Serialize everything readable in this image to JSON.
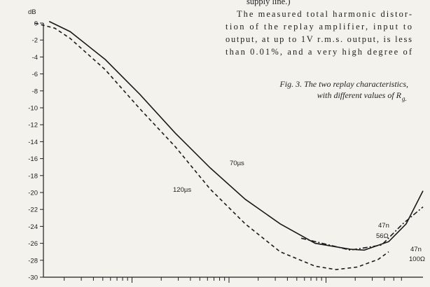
{
  "chart_data": {
    "type": "line",
    "text_lines": [
      "supply line.)",
      "The measured total harmonic distor-",
      "tion of the replay amplifier, input to",
      "output, at up to 1V r.m.s. output, is less",
      "than 0.01%, and a very high degree of"
    ],
    "caption": [
      "Fig. 3. The two replay characteristics,",
      "with different values of R"
    ],
    "caption_subscript": "g.",
    "y_label": "dB",
    "annotations": [
      "70µs",
      "120µs",
      "47n",
      "56Ω",
      "47n",
      "100Ω"
    ],
    "log_x": true,
    "xlim": [
      10,
      100000
    ],
    "xticks": [
      20,
      30,
      40,
      50,
      60,
      70,
      80,
      90,
      100,
      200,
      300,
      400,
      500,
      600,
      700,
      800,
      900,
      1000,
      2000,
      3000,
      4000,
      5000,
      6000,
      7000,
      8000,
      9000,
      10000,
      20000,
      30000,
      40000,
      50000,
      60000
    ],
    "ylim": [
      -30,
      0
    ],
    "yticks": [
      0,
      -2,
      -4,
      -6,
      -8,
      -10,
      -12,
      -14,
      -16,
      -18,
      -20,
      -22,
      -24,
      -26,
      -28,
      -30
    ],
    "series": [
      {
        "color": "#1a1a1a",
        "dash": "solid",
        "x": [
          14,
          23,
          53,
          120,
          280,
          640,
          1470,
          3370,
          7730,
          17800,
          24800,
          44300,
          67100,
          100000
        ],
        "values": [
          0.2,
          -1,
          -4.3,
          -8.4,
          -13,
          -17.1,
          -20.8,
          -23.7,
          -26,
          -26.7,
          -26.8,
          -25.8,
          -23.7,
          -19.8
        ]
      },
      {
        "color": "#1a1a1a",
        "dash": "dashed",
        "x": [
          10,
          16,
          23,
          53,
          120,
          280,
          640,
          1470,
          3370,
          7730,
          12700,
          21000,
          34500,
          44300
        ],
        "values": [
          0,
          -0.6,
          -1.8,
          -5.5,
          -10.1,
          -14.6,
          -19.6,
          -23.7,
          -27,
          -28.7,
          -29.1,
          -28.8,
          -27.9,
          -27
        ]
      },
      {
        "color": "#1a1a1a",
        "dash": "dashdot",
        "x": [
          5550,
          17800,
          37500,
          61800,
          100000
        ],
        "values": [
          -25.4,
          -26.8,
          -26.2,
          -23.7,
          -21.7
        ]
      }
    ]
  }
}
